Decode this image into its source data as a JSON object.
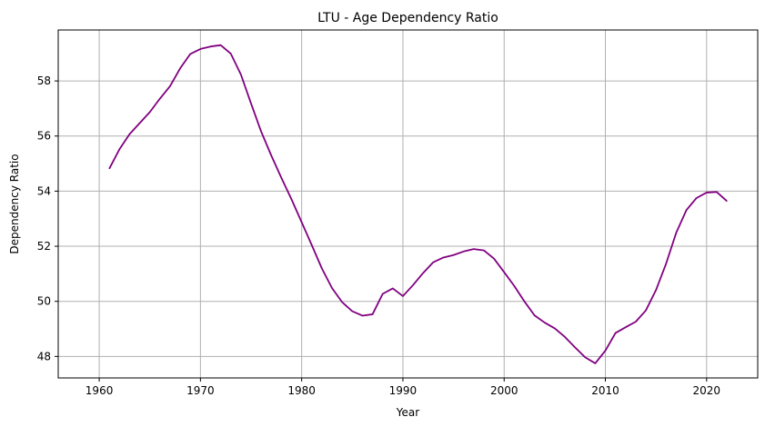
{
  "chart_data": {
    "type": "line",
    "title": "LTU - Age Dependency Ratio",
    "xlabel": "Year",
    "ylabel": "Dependency Ratio",
    "xlim": [
      1955.95,
      2025.05
    ],
    "ylim": [
      47.22,
      59.85
    ],
    "xticks": [
      1960,
      1970,
      1980,
      1990,
      2000,
      2010,
      2020
    ],
    "yticks": [
      48,
      50,
      52,
      54,
      56,
      58
    ],
    "grid": true,
    "line_color": "#800080",
    "grid_color": "#b0b0b0",
    "series": [
      {
        "x": [
          1961,
          1962,
          1963,
          1964,
          1965,
          1966,
          1967,
          1968,
          1969,
          1970,
          1971,
          1972,
          1973,
          1974,
          1975,
          1976,
          1977,
          1978,
          1979,
          1980,
          1981,
          1982,
          1983,
          1984,
          1985,
          1986,
          1987,
          1988,
          1989,
          1990,
          1991,
          1992,
          1993,
          1994,
          1995,
          1996,
          1997,
          1998,
          1999,
          2000,
          2001,
          2002,
          2003,
          2004,
          2005,
          2006,
          2007,
          2008,
          2009,
          2010,
          2011,
          2012,
          2013,
          2014,
          2015,
          2016,
          2017,
          2018,
          2019,
          2020,
          2021,
          2022
        ],
        "values": [
          54.82,
          55.52,
          56.07,
          56.47,
          56.87,
          57.36,
          57.81,
          58.46,
          58.98,
          59.16,
          59.25,
          59.3,
          58.99,
          58.23,
          57.18,
          56.16,
          55.29,
          54.48,
          53.7,
          52.87,
          52.04,
          51.19,
          50.48,
          49.97,
          49.64,
          49.48,
          49.53,
          50.27,
          50.47,
          50.19,
          50.59,
          51.03,
          51.42,
          51.59,
          51.68,
          51.81,
          51.9,
          51.85,
          51.55,
          51.06,
          50.56,
          50.0,
          49.49,
          49.23,
          49.02,
          48.71,
          48.33,
          47.97,
          47.75,
          48.21,
          48.85,
          49.06,
          49.26,
          49.67,
          50.41,
          51.37,
          52.49,
          53.31,
          53.75,
          53.95,
          53.97,
          53.64
        ]
      }
    ]
  }
}
